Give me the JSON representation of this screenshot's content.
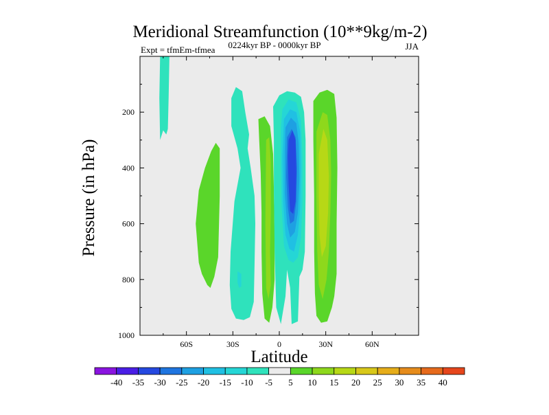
{
  "chart_data": {
    "type": "contour",
    "title": "Meridional Streamfunction (10**9kg/m-2)",
    "subtitle_left": "Expt = tfmEm-tfmea",
    "subtitle_center": "0224kyr BP - 0000kyr BP",
    "subtitle_right": "JJA",
    "xlabel": "Latitude",
    "ylabel": "Pressure (in hPa)",
    "xlim": [
      -90,
      90
    ],
    "ylim": [
      1000,
      0
    ],
    "x_ticks": [
      {
        "value": -60,
        "label": "60S"
      },
      {
        "value": -30,
        "label": "30S"
      },
      {
        "value": 0,
        "label": "0"
      },
      {
        "value": 30,
        "label": "30N"
      },
      {
        "value": 60,
        "label": "60N"
      }
    ],
    "y_ticks": [
      {
        "value": 200,
        "label": "200"
      },
      {
        "value": 400,
        "label": "400"
      },
      {
        "value": 600,
        "label": "600"
      },
      {
        "value": 800,
        "label": "800"
      },
      {
        "value": 1000,
        "label": "1000"
      }
    ],
    "colorbar": {
      "colors": [
        "#8a14e0",
        "#4a1ee6",
        "#2548e0",
        "#1f75e0",
        "#1ea0e2",
        "#20c0e3",
        "#25d6d6",
        "#2fe2bc",
        "#ebebeb",
        "#5ad62a",
        "#8ed81c",
        "#b7d816",
        "#d8c81a",
        "#e6ad1a",
        "#e68c1c",
        "#e66a1c",
        "#e6461c"
      ],
      "labels": [
        "-40",
        "-35",
        "-30",
        "-25",
        "-20",
        "-15",
        "-10",
        "-5",
        "5",
        "10",
        "15",
        "20",
        "25",
        "30",
        "35",
        "40"
      ]
    },
    "regions": [
      {
        "name": "nh-high-lat-cell",
        "level": -5,
        "points": [
          [
            -77,
            0
          ],
          [
            -71,
            0
          ],
          [
            -71.5,
            150
          ],
          [
            -72,
            260
          ],
          [
            -73,
            280
          ],
          [
            -75,
            265
          ],
          [
            -77,
            300
          ],
          [
            -77.5,
            150
          ]
        ]
      },
      {
        "name": "sh-midlat-positive-cell",
        "level": 5,
        "points": [
          [
            -52,
            740
          ],
          [
            -54,
            600
          ],
          [
            -52,
            480
          ],
          [
            -48,
            400
          ],
          [
            -44,
            340
          ],
          [
            -41,
            310
          ],
          [
            -38.5,
            330
          ],
          [
            -38.5,
            500
          ],
          [
            -39.5,
            720
          ],
          [
            -42,
            790
          ],
          [
            -44.5,
            830
          ],
          [
            -46.5,
            820
          ],
          [
            -50,
            780
          ]
        ]
      },
      {
        "name": "sh-subtropic-negative-cell",
        "level": -5,
        "points": [
          [
            -31,
            150
          ],
          [
            -28,
            110
          ],
          [
            -24,
            125
          ],
          [
            -22,
            200
          ],
          [
            -19.5,
            280
          ],
          [
            -20.5,
            330
          ],
          [
            -18.5,
            400
          ],
          [
            -16,
            500
          ],
          [
            -15.5,
            600
          ],
          [
            -16,
            750
          ],
          [
            -16.5,
            880
          ],
          [
            -19,
            935
          ],
          [
            -23,
            945
          ],
          [
            -28,
            940
          ],
          [
            -31,
            905
          ],
          [
            -32,
            820
          ],
          [
            -31.5,
            700
          ],
          [
            -29,
            520
          ],
          [
            -25,
            400
          ],
          [
            -27,
            330
          ],
          [
            -29,
            290
          ],
          [
            -31,
            250
          ]
        ]
      },
      {
        "name": "sh-subtropic-inner-patch",
        "level": -10,
        "points": [
          [
            -27,
            770
          ],
          [
            -24.5,
            780
          ],
          [
            -24.5,
            825
          ],
          [
            -26,
            830
          ],
          [
            -27,
            810
          ]
        ]
      },
      {
        "name": "tropic-positive-sliver",
        "level": 5,
        "points": [
          [
            -13.5,
            225
          ],
          [
            -9.5,
            215
          ],
          [
            -6,
            250
          ],
          [
            -4,
            350
          ],
          [
            -3.5,
            480
          ],
          [
            -3,
            640
          ],
          [
            -3,
            800
          ],
          [
            -4.5,
            900
          ],
          [
            -6.5,
            955
          ],
          [
            -9.5,
            940
          ],
          [
            -11,
            850
          ],
          [
            -11.5,
            700
          ],
          [
            -11.5,
            560
          ],
          [
            -12,
            420
          ],
          [
            -13,
            300
          ]
        ]
      },
      {
        "name": "tropic-positive-sliver-core",
        "level": 10,
        "points": [
          [
            -8.5,
            300
          ],
          [
            -6.5,
            290
          ],
          [
            -5.5,
            380
          ],
          [
            -5.5,
            560
          ],
          [
            -6,
            700
          ],
          [
            -5.5,
            820
          ],
          [
            -7,
            870
          ],
          [
            -8.5,
            830
          ],
          [
            -9,
            600
          ]
        ]
      },
      {
        "name": "equatorial-negative-cell",
        "level": -5,
        "points": [
          [
            -4,
            180
          ],
          [
            0,
            140
          ],
          [
            5,
            125
          ],
          [
            10,
            130
          ],
          [
            14,
            145
          ],
          [
            16,
            200
          ],
          [
            17,
            300
          ],
          [
            17,
            500
          ],
          [
            16.5,
            700
          ],
          [
            15,
            765
          ],
          [
            13,
            790
          ],
          [
            12,
            950
          ],
          [
            8,
            960
          ],
          [
            7,
            830
          ],
          [
            5,
            765
          ],
          [
            4,
            860
          ],
          [
            1,
            960
          ],
          [
            -2,
            900
          ],
          [
            -3,
            700
          ],
          [
            -3.5,
            480
          ],
          [
            -3.5,
            300
          ]
        ]
      },
      {
        "name": "equatorial-negative-10",
        "level": -10,
        "points": [
          [
            2,
            190
          ],
          [
            6,
            155
          ],
          [
            11,
            165
          ],
          [
            14,
            230
          ],
          [
            15,
            360
          ],
          [
            15,
            520
          ],
          [
            14,
            650
          ],
          [
            12,
            720
          ],
          [
            9,
            740
          ],
          [
            6,
            730
          ],
          [
            3,
            680
          ],
          [
            1.5,
            540
          ],
          [
            1,
            380
          ],
          [
            1,
            260
          ]
        ]
      },
      {
        "name": "equatorial-negative-15",
        "level": -15,
        "points": [
          [
            3,
            225
          ],
          [
            7,
            190
          ],
          [
            11,
            200
          ],
          [
            13.5,
            270
          ],
          [
            14,
            400
          ],
          [
            13.5,
            540
          ],
          [
            12,
            640
          ],
          [
            9.5,
            700
          ],
          [
            6.5,
            690
          ],
          [
            4,
            640
          ],
          [
            2.5,
            520
          ],
          [
            2,
            360
          ]
        ]
      },
      {
        "name": "equatorial-negative-20",
        "level": -20,
        "points": [
          [
            4,
            255
          ],
          [
            7.5,
            220
          ],
          [
            11,
            240
          ],
          [
            12.5,
            310
          ],
          [
            13,
            440
          ],
          [
            12,
            560
          ],
          [
            10,
            630
          ],
          [
            7,
            650
          ],
          [
            5,
            600
          ],
          [
            3.5,
            490
          ],
          [
            3.5,
            340
          ]
        ]
      },
      {
        "name": "equatorial-negative-25",
        "level": -25,
        "points": [
          [
            5,
            290
          ],
          [
            8,
            260
          ],
          [
            10.5,
            290
          ],
          [
            11.5,
            400
          ],
          [
            11,
            520
          ],
          [
            9.5,
            590
          ],
          [
            7,
            600
          ],
          [
            5.5,
            540
          ],
          [
            4.5,
            430
          ]
        ]
      },
      {
        "name": "equatorial-negative-30",
        "level": -30,
        "points": [
          [
            6,
            300
          ],
          [
            8.5,
            265
          ],
          [
            10.5,
            300
          ],
          [
            11,
            420
          ],
          [
            10.5,
            520
          ],
          [
            9,
            565
          ],
          [
            7,
            555
          ],
          [
            6,
            460
          ],
          [
            5.5,
            360
          ]
        ]
      },
      {
        "name": "nh-subtropic-positive-cell",
        "level": 5,
        "points": [
          [
            22,
            160
          ],
          [
            26,
            130
          ],
          [
            31,
            120
          ],
          [
            35.5,
            135
          ],
          [
            37,
            220
          ],
          [
            37.5,
            400
          ],
          [
            37,
            600
          ],
          [
            37,
            780
          ],
          [
            35.5,
            860
          ],
          [
            34,
            900
          ],
          [
            31,
            950
          ],
          [
            27,
            955
          ],
          [
            24,
            930
          ],
          [
            23,
            850
          ],
          [
            22.5,
            700
          ],
          [
            22.5,
            500
          ],
          [
            22,
            300
          ]
        ]
      },
      {
        "name": "nh-subtropic-positive-10",
        "level": 10,
        "points": [
          [
            24,
            270
          ],
          [
            28,
            200
          ],
          [
            31,
            210
          ],
          [
            33,
            300
          ],
          [
            33.5,
            420
          ],
          [
            33,
            560
          ],
          [
            32,
            700
          ],
          [
            30.5,
            800
          ],
          [
            28,
            870
          ],
          [
            25.5,
            820
          ],
          [
            24.5,
            700
          ],
          [
            24,
            500
          ]
        ]
      },
      {
        "name": "nh-subtropic-positive-15",
        "level": 15,
        "points": [
          [
            25.5,
            350
          ],
          [
            28.5,
            260
          ],
          [
            31,
            300
          ],
          [
            32,
            430
          ],
          [
            31.5,
            560
          ],
          [
            30,
            680
          ],
          [
            27.5,
            720
          ],
          [
            26,
            640
          ],
          [
            25.5,
            500
          ]
        ]
      }
    ]
  }
}
